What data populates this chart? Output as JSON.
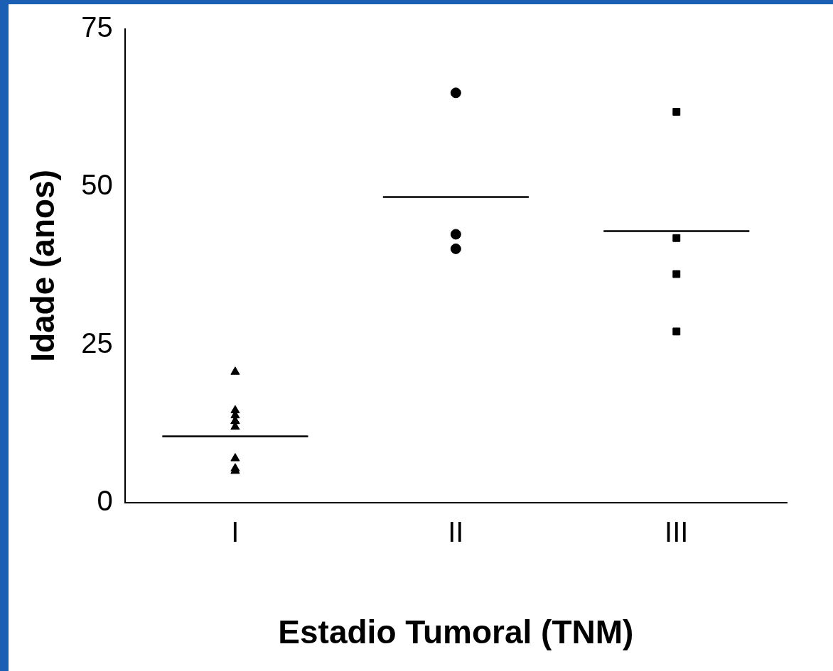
{
  "chart_data": {
    "type": "scatter",
    "xlabel": "Estadio Tumoral (TNM)",
    "ylabel": "Idade (anos)",
    "categories": [
      "I",
      "II",
      "III"
    ],
    "ylim": [
      0,
      75
    ],
    "yticks": [
      0,
      25,
      50,
      75
    ],
    "grid": false,
    "legend": false,
    "series": [
      {
        "color": "#000000",
        "marker": "triangle",
        "x": [
          "I",
          "I",
          "I",
          "I",
          "I",
          "I",
          "I",
          "I",
          "I"
        ],
        "values": [
          20.7,
          13.8,
          12.9,
          14.6,
          12.0,
          12.9,
          7.0,
          5.0,
          5.4
        ]
      },
      {
        "color": "#000000",
        "marker": "circle",
        "x": [
          "II",
          "II",
          "II"
        ],
        "values": [
          64.9,
          42.5,
          40.2
        ]
      },
      {
        "color": "#000000",
        "marker": "square",
        "x": [
          "III",
          "III",
          "III",
          "III"
        ],
        "values": [
          61.9,
          41.9,
          36.2,
          27.1
        ]
      },
      {
        "type": "box",
        "color": "#000000",
        "boxes": [
          {
            "low": 10.5,
            "q1": 10.5,
            "median": 10.5,
            "q3": 10.5,
            "high": 10.5
          },
          {
            "low": 48.4,
            "q1": 48.4,
            "median": 48.4,
            "q3": 48.4,
            "high": 48.4
          },
          {
            "low": 43.0,
            "q1": 43.0,
            "median": 43.0,
            "q3": 43.0,
            "high": 43.0
          }
        ]
      }
    ]
  }
}
